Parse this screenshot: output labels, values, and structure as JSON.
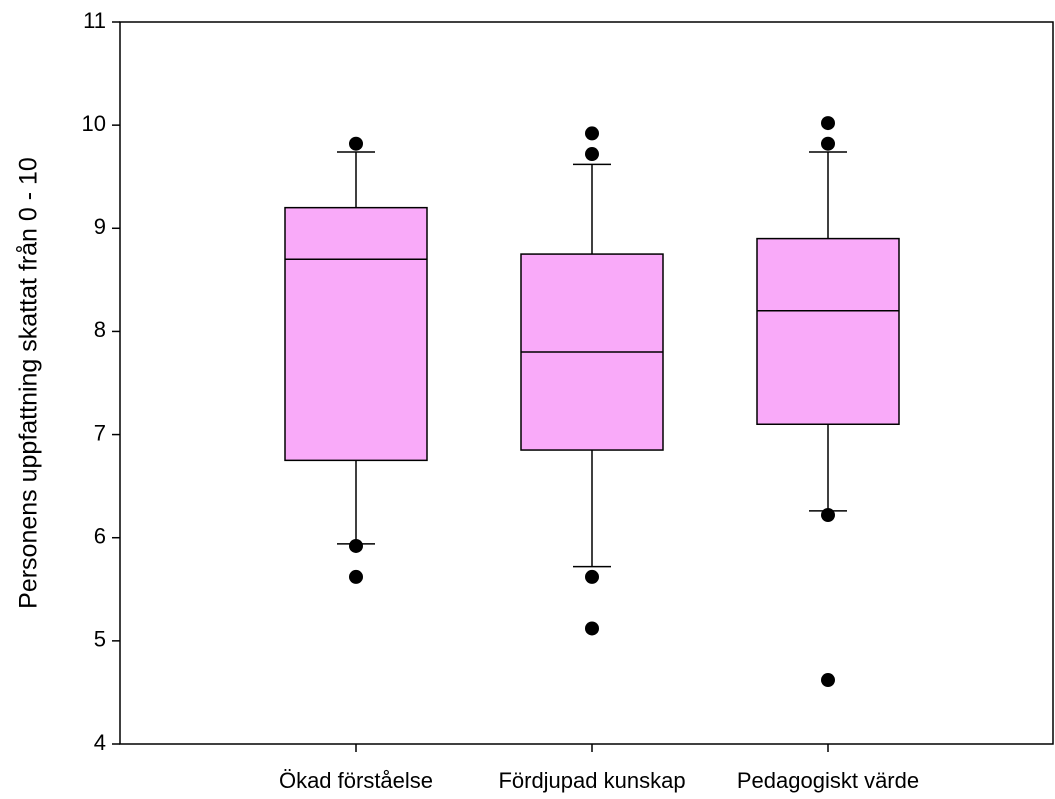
{
  "chart_data": {
    "type": "box",
    "y_label": "Personens uppfattning skattat från 0 - 10",
    "categories": [
      "Ökad förståelse",
      "Fördjupad kunskap",
      "Pedagogiskt värde"
    ],
    "color": "#f9aaf9",
    "boxes": [
      {
        "min": 5.94,
        "q1": 6.75,
        "median": 8.7,
        "q3": 9.2,
        "max": 9.74,
        "outliers": [
          9.82,
          5.92,
          5.62
        ]
      },
      {
        "min": 5.72,
        "q1": 6.85,
        "median": 7.8,
        "q3": 8.75,
        "max": 9.62,
        "outliers": [
          9.92,
          9.72,
          5.62,
          5.12
        ]
      },
      {
        "min": 6.26,
        "q1": 7.1,
        "median": 8.2,
        "q3": 8.9,
        "max": 9.74,
        "outliers": [
          10.02,
          9.82,
          6.22,
          4.62
        ]
      }
    ],
    "ylim": [
      4,
      11
    ],
    "yticks": [
      4,
      5,
      6,
      7,
      8,
      9,
      10,
      11
    ]
  }
}
